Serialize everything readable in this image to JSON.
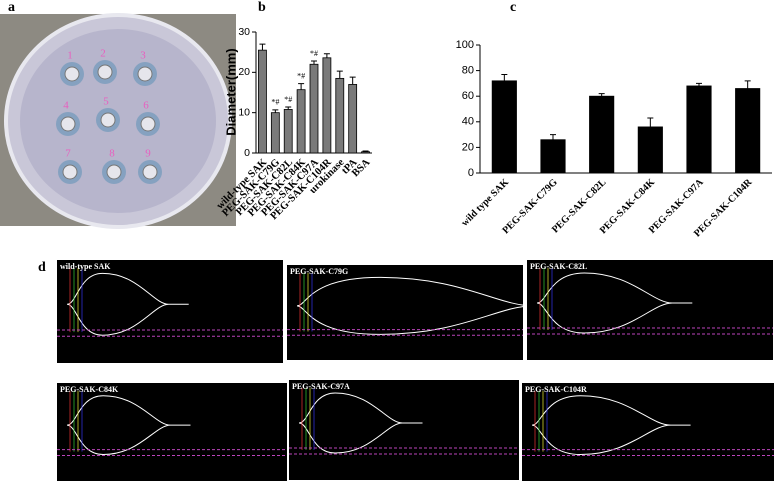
{
  "panel_labels": [
    "a",
    "b",
    "c",
    "d"
  ],
  "plate_labels": [
    "1",
    "2",
    "3",
    "4",
    "5",
    "6",
    "7",
    "8",
    "9"
  ],
  "teg_panels": [
    "wild-type SAK",
    "PEG-SAK-C79G",
    "PEG-SAK-C82L",
    "PEG-SAK-C84K",
    "PEG-SAK-C97A",
    "PEG-SAK-C104R"
  ],
  "chart_data": [
    {
      "type": "bar",
      "y_label": "Diameter(mm)",
      "categories": [
        "wild-type SAK",
        "PEG-SAK-C79G",
        "PEG-SAK-C82L",
        "PEG-SAK-C84K",
        "PEG-SAK-C97A",
        "PEG-SAK-C104R",
        "urokinase",
        "tPA",
        "BSA"
      ],
      "values": [
        25.5,
        10,
        10.8,
        15.7,
        22,
        23.6,
        18.5,
        17,
        0.3
      ],
      "errors": [
        1.5,
        0.7,
        0.6,
        1.5,
        0.8,
        1,
        1.8,
        1.8,
        0.2
      ],
      "annotations": [
        null,
        "*#",
        "*#",
        "*#",
        "*#",
        null,
        null,
        null,
        null
      ],
      "color": "#7a7a7a",
      "ylim": [
        0,
        30
      ],
      "yticks": [
        0,
        10,
        20,
        30
      ]
    },
    {
      "type": "bar",
      "categories": [
        "wild type SAK",
        "PEG-SAK-C79G",
        "PEG-SAK-C82L",
        "PEG-SAK-C84K",
        "PEG-SAK-C97A",
        "PEG-SAK-C104R"
      ],
      "values": [
        72,
        26,
        60,
        36,
        68,
        66
      ],
      "errors": [
        5,
        4,
        2,
        7,
        2,
        6
      ],
      "color": "#000000",
      "ylim": [
        0,
        100
      ],
      "yticks": [
        0,
        20,
        40,
        60,
        80,
        100
      ]
    }
  ]
}
